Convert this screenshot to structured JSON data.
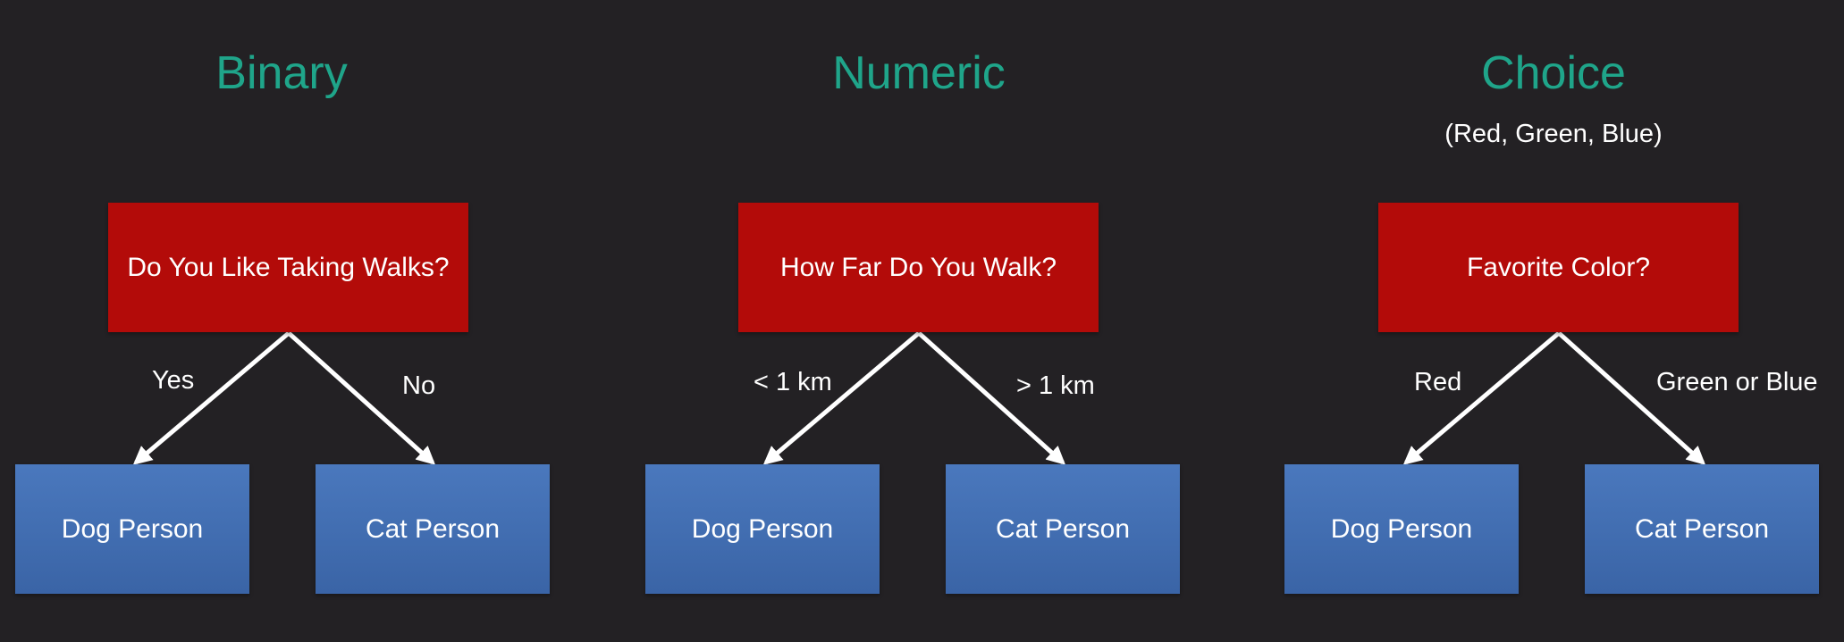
{
  "colors": {
    "background": "#232124",
    "title": "#1fa58a",
    "question_box": "#b30b09",
    "answer_box": "#4a78bd",
    "text": "#ffffff",
    "arrow": "#ffffff"
  },
  "panels": [
    {
      "title": "Binary",
      "subtitle": "",
      "question": "Do You Like Taking Walks?",
      "left_label": "Yes",
      "right_label": "No",
      "left_answer": "Dog Person",
      "right_answer": "Cat Person"
    },
    {
      "title": "Numeric",
      "subtitle": "",
      "question": "How Far Do You Walk?",
      "left_label": "< 1 km",
      "right_label": "> 1 km",
      "left_answer": "Dog Person",
      "right_answer": "Cat Person"
    },
    {
      "title": "Choice",
      "subtitle": "(Red, Green, Blue)",
      "question": "Favorite Color?",
      "left_label": "Red",
      "right_label": "Green or Blue",
      "left_answer": "Dog Person",
      "right_answer": "Cat Person"
    }
  ]
}
